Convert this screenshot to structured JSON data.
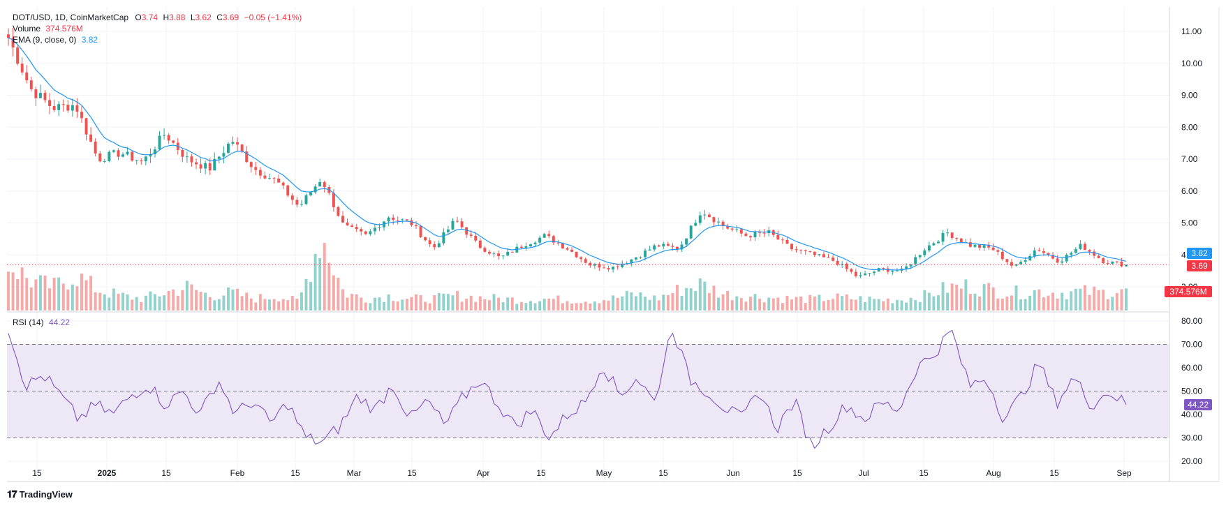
{
  "legend": {
    "symbol": "DOT/USD, 1D, CoinMarketCap",
    "o_label": "O",
    "o_val": "3.74",
    "h_label": "H",
    "h_val": "3.88",
    "l_label": "L",
    "l_val": "3.62",
    "c_label": "C",
    "c_val": "3.69",
    "change": "−0.05 (−1.41%)",
    "volume_label": "Volume",
    "volume_val": "374.576M",
    "ema_label": "EMA (9, close, 0)",
    "ema_val": "3.82",
    "rsi_label": "RSI (14)",
    "rsi_val": "44.22"
  },
  "tags": {
    "ema": "3.82",
    "price": "3.69",
    "volume": "374.576M",
    "rsi": "44.22"
  },
  "brand": {
    "name": "TradingView"
  },
  "colors": {
    "up": "#26a69a",
    "down": "#ef5350",
    "ema": "#2196f3",
    "rsi": "#7e57c2",
    "rsi_band": "#ede7f6",
    "price_tag": "#f23645",
    "ema_tag": "#2196f3",
    "rsi_tag": "#7e57c2"
  },
  "chart_data": [
    {
      "type": "candlestick",
      "title": "DOT/USD, 1D, CoinMarketCap",
      "y_ticks": [
        "11.00",
        "10.00",
        "9.00",
        "8.00",
        "7.00",
        "6.00",
        "5.00",
        "4.00",
        "3.00"
      ],
      "ylim": [
        2.75,
        11.5
      ],
      "x_ticks": [
        "15",
        "2025",
        "15",
        "Feb",
        "15",
        "Mar",
        "15",
        "Apr",
        "15",
        "May",
        "15",
        "Jun",
        "15",
        "Jul",
        "15",
        "Aug",
        "15",
        "Sep"
      ],
      "close_anchors": [
        10.8,
        9.2,
        8.6,
        8.7,
        7.0,
        7.2,
        6.9,
        7.8,
        7.0,
        6.7,
        7.6,
        6.7,
        6.3,
        5.5,
        6.4,
        4.9,
        4.6,
        5.2,
        5.0,
        4.2,
        5.1,
        4.3,
        3.9,
        4.3,
        4.6,
        4.2,
        3.7,
        3.6,
        3.9,
        4.3,
        4.2,
        5.4,
        4.9,
        4.6,
        4.7,
        4.2,
        4.0,
        3.8,
        3.3,
        3.55,
        3.5,
        4.2,
        4.7,
        4.3,
        4.2,
        3.6,
        4.2,
        3.8,
        4.3,
        3.8,
        3.69
      ],
      "volume_anchors_m": [
        800,
        500,
        400,
        600,
        350,
        250,
        200,
        300,
        400,
        250,
        300,
        200,
        250,
        150,
        1300,
        300,
        200,
        250,
        200,
        200,
        250,
        220,
        200,
        180,
        200,
        180,
        170,
        200,
        280,
        200,
        350,
        450,
        280,
        250,
        220,
        200,
        190,
        220,
        200,
        180,
        190,
        250,
        380,
        420,
        350,
        300,
        330,
        300,
        320,
        300,
        374.576
      ],
      "volume_ylim_m": [
        0,
        1300
      ],
      "last_close": 3.69,
      "ema_last": 3.82,
      "volume_last": "374.576M"
    },
    {
      "type": "line",
      "title": "RSI (14)",
      "y_ticks": [
        "80.00",
        "70.00",
        "60.00",
        "50.00",
        "40.00",
        "30.00",
        "20.00"
      ],
      "ylim": [
        20,
        80
      ],
      "bands": [
        30,
        50,
        70
      ],
      "values_anchors": [
        77,
        52,
        57,
        48,
        38,
        44,
        40,
        48,
        53,
        44,
        50,
        40,
        55,
        40,
        46,
        36,
        45,
        30,
        28,
        35,
        48,
        42,
        53,
        38,
        46,
        35,
        47,
        55,
        45,
        35,
        42,
        30,
        40,
        45,
        62,
        48,
        56,
        45,
        78,
        55,
        50,
        43,
        38,
        50,
        34,
        46,
        26,
        35,
        44,
        38,
        45,
        42,
        60,
        66,
        76,
        52,
        56,
        38,
        48,
        62,
        45,
        56,
        44,
        50,
        44.22
      ],
      "last": 44.22
    }
  ]
}
